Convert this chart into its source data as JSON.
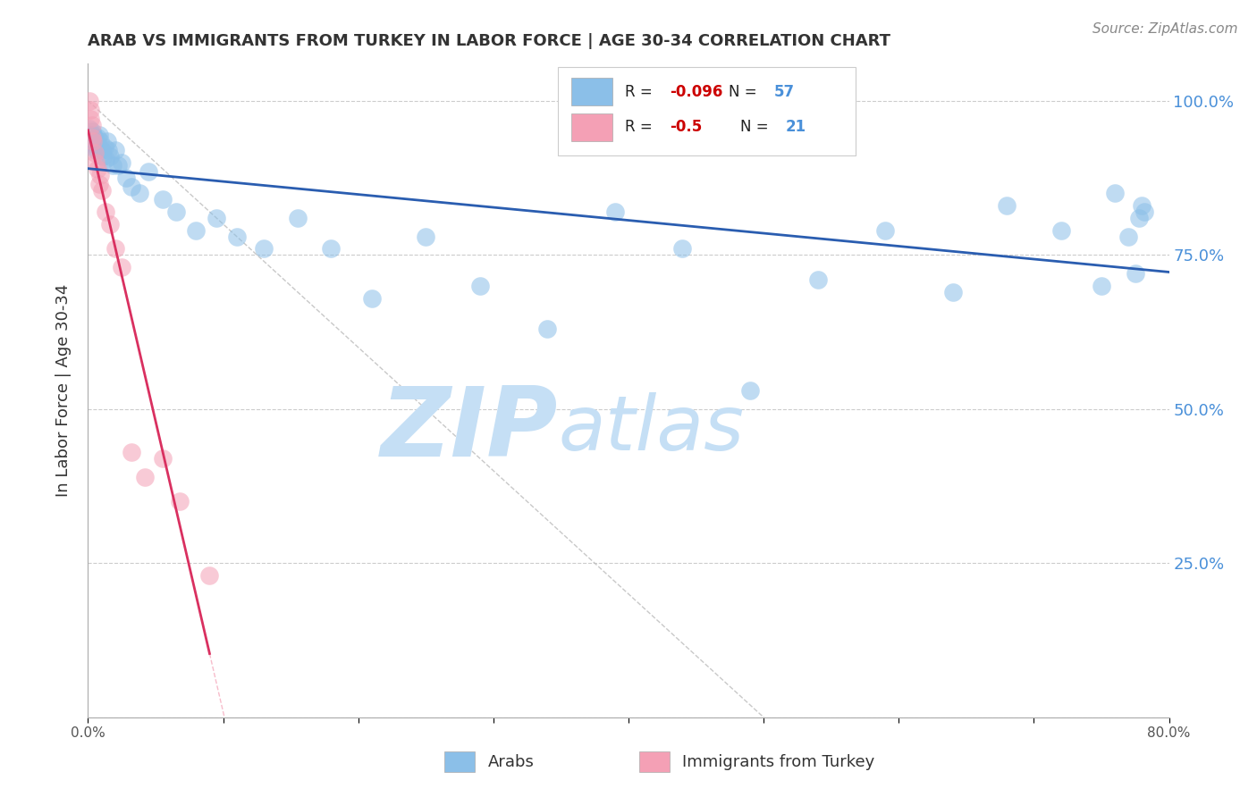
{
  "title": "ARAB VS IMMIGRANTS FROM TURKEY IN LABOR FORCE | AGE 30-34 CORRELATION CHART",
  "source": "Source: ZipAtlas.com",
  "ylabel": "In Labor Force | Age 30-34",
  "xmin": 0.0,
  "xmax": 0.8,
  "ymin": 0.0,
  "ymax": 1.06,
  "yticks": [
    0.0,
    0.25,
    0.5,
    0.75,
    1.0
  ],
  "ytick_labels": [
    "",
    "25.0%",
    "50.0%",
    "75.0%",
    "100.0%"
  ],
  "xticks": [
    0.0,
    0.1,
    0.2,
    0.3,
    0.4,
    0.5,
    0.6,
    0.7,
    0.8
  ],
  "xtick_labels": [
    "0.0%",
    "",
    "",
    "",
    "",
    "",
    "",
    "",
    "80.0%"
  ],
  "arab_R": -0.096,
  "arab_N": 57,
  "turkey_R": -0.5,
  "turkey_N": 21,
  "arab_color": "#8bbfe8",
  "turkey_color": "#f4a0b5",
  "arab_line_color": "#2a5db0",
  "turkey_line_color": "#d93060",
  "arab_x": [
    0.001,
    0.002,
    0.002,
    0.003,
    0.003,
    0.004,
    0.004,
    0.005,
    0.005,
    0.006,
    0.006,
    0.007,
    0.007,
    0.008,
    0.009,
    0.01,
    0.011,
    0.012,
    0.013,
    0.014,
    0.015,
    0.016,
    0.018,
    0.02,
    0.022,
    0.025,
    0.028,
    0.032,
    0.038,
    0.045,
    0.055,
    0.065,
    0.08,
    0.095,
    0.11,
    0.13,
    0.155,
    0.18,
    0.21,
    0.25,
    0.29,
    0.34,
    0.39,
    0.44,
    0.49,
    0.54,
    0.59,
    0.64,
    0.68,
    0.72,
    0.75,
    0.76,
    0.77,
    0.775,
    0.778,
    0.78,
    0.782
  ],
  "arab_y": [
    0.955,
    0.945,
    0.935,
    0.95,
    0.94,
    0.945,
    0.93,
    0.94,
    0.925,
    0.935,
    0.92,
    0.94,
    0.93,
    0.945,
    0.935,
    0.92,
    0.91,
    0.925,
    0.905,
    0.935,
    0.92,
    0.91,
    0.895,
    0.92,
    0.895,
    0.9,
    0.875,
    0.86,
    0.85,
    0.885,
    0.84,
    0.82,
    0.79,
    0.81,
    0.78,
    0.76,
    0.81,
    0.76,
    0.68,
    0.78,
    0.7,
    0.63,
    0.82,
    0.76,
    0.53,
    0.71,
    0.79,
    0.69,
    0.83,
    0.79,
    0.7,
    0.85,
    0.78,
    0.72,
    0.81,
    0.83,
    0.82
  ],
  "turkey_x": [
    0.001,
    0.002,
    0.002,
    0.003,
    0.003,
    0.004,
    0.005,
    0.006,
    0.007,
    0.008,
    0.009,
    0.01,
    0.013,
    0.016,
    0.02,
    0.025,
    0.032,
    0.042,
    0.055,
    0.068,
    0.09
  ],
  "turkey_y": [
    1.0,
    0.985,
    0.97,
    0.96,
    0.94,
    0.935,
    0.915,
    0.9,
    0.89,
    0.865,
    0.88,
    0.855,
    0.82,
    0.8,
    0.76,
    0.73,
    0.43,
    0.39,
    0.42,
    0.35,
    0.23
  ],
  "watermark_zip": "ZIP",
  "watermark_atlas": "atlas",
  "watermark_color": "#c5dff5",
  "background_color": "#ffffff",
  "grid_color": "#cccccc",
  "ref_line_color": "#bbbbbb",
  "turkey_extrap_color": "#f4a0b5"
}
